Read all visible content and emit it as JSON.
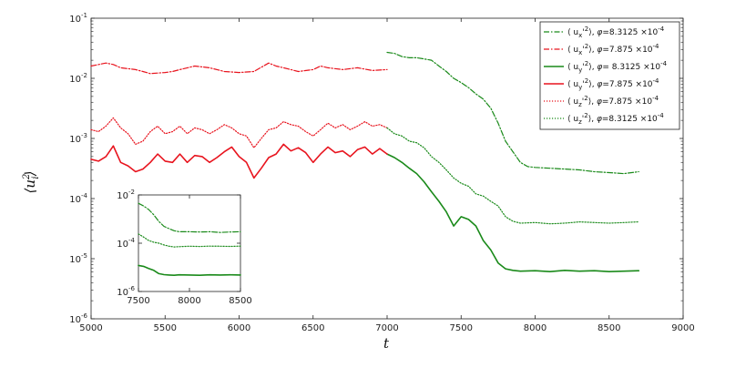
{
  "chart_data": [
    {
      "type": "line",
      "role": "main",
      "xlabel": "t",
      "ylabel": "⟨u_i'^2⟩",
      "xlim": [
        5000,
        9000
      ],
      "ylim": [
        1e-06,
        0.1
      ],
      "yscale": "log",
      "x_ticks": [
        5000,
        5500,
        6000,
        6500,
        7000,
        7500,
        8000,
        8500,
        9000
      ],
      "x_tick_labels": [
        "5000",
        "5500",
        "6000",
        "6500",
        "7000",
        "7500",
        "8000",
        "8500",
        "9000"
      ],
      "y_ticks": [
        1e-06,
        1e-05,
        0.0001,
        0.001,
        0.01,
        0.1
      ],
      "y_tick_labels": [
        {
          "base": "10",
          "exp": "-6"
        },
        {
          "base": "10",
          "exp": "-5"
        },
        {
          "base": "10",
          "exp": "-4"
        },
        {
          "base": "10",
          "exp": "-3"
        },
        {
          "base": "10",
          "exp": "-2"
        },
        {
          "base": "10",
          "exp": "-1"
        }
      ],
      "grid": false,
      "legend_position": "top-right",
      "series": [
        {
          "id": "ux_phi83125",
          "name": "⟨ u_x'^2⟩, φ=8.3125 ×10^-4",
          "color": "#1a8a1a",
          "dash": "dashdot",
          "x": [
            7000,
            7050,
            7100,
            7150,
            7200,
            7250,
            7300,
            7350,
            7400,
            7450,
            7500,
            7550,
            7600,
            7650,
            7700,
            7750,
            7800,
            7850,
            7900,
            7950,
            8000,
            8100,
            8200,
            8300,
            8400,
            8500,
            8600,
            8700
          ],
          "y": [
            0.027,
            0.026,
            0.023,
            0.022,
            0.022,
            0.021,
            0.02,
            0.016,
            0.013,
            0.01,
            0.0085,
            0.007,
            0.0055,
            0.0045,
            0.0032,
            0.0018,
            0.0009,
            0.0006,
            0.0004,
            0.00034,
            0.00033,
            0.00032,
            0.00031,
            0.0003,
            0.00028,
            0.00027,
            0.00026,
            0.00028
          ]
        },
        {
          "id": "ux_phi7875",
          "name": "⟨ u_x'^2⟩, φ=7.875 ×10^-4",
          "color": "#e8141e",
          "dash": "dashdot",
          "x": [
            5000,
            5100,
            5150,
            5200,
            5300,
            5350,
            5400,
            5500,
            5550,
            5600,
            5700,
            5800,
            5900,
            6000,
            6100,
            6200,
            6250,
            6300,
            6400,
            6500,
            6550,
            6600,
            6700,
            6800,
            6900,
            7000
          ],
          "y": [
            0.016,
            0.018,
            0.017,
            0.015,
            0.014,
            0.013,
            0.012,
            0.0125,
            0.013,
            0.014,
            0.016,
            0.015,
            0.013,
            0.0125,
            0.013,
            0.018,
            0.016,
            0.015,
            0.013,
            0.014,
            0.016,
            0.015,
            0.014,
            0.015,
            0.0135,
            0.014
          ]
        },
        {
          "id": "uy_phi83125",
          "name": "⟨ u_y'^2⟩, φ= 8.3125 ×10^-4",
          "color": "#1a8a1a",
          "dash": "solid",
          "x": [
            7000,
            7050,
            7100,
            7150,
            7200,
            7250,
            7300,
            7350,
            7400,
            7450,
            7500,
            7550,
            7600,
            7650,
            7700,
            7750,
            7800,
            7850,
            7900,
            8000,
            8100,
            8200,
            8300,
            8400,
            8500,
            8600,
            8700
          ],
          "y": [
            0.00055,
            0.00048,
            0.0004,
            0.00032,
            0.00026,
            0.00019,
            0.00013,
            9e-05,
            6e-05,
            3.5e-05,
            5e-05,
            4.5e-05,
            3.5e-05,
            2e-05,
            1.4e-05,
            8.5e-06,
            6.8e-06,
            6.4e-06,
            6.2e-06,
            6.3e-06,
            6.1e-06,
            6.4e-06,
            6.2e-06,
            6.3e-06,
            6.1e-06,
            6.2e-06,
            6.3e-06
          ]
        },
        {
          "id": "uy_phi7875",
          "name": "⟨ u_y'^2⟩, φ=7.875 ×10^-4",
          "color": "#e8141e",
          "dash": "solid",
          "x": [
            5000,
            5050,
            5100,
            5150,
            5200,
            5250,
            5300,
            5350,
            5400,
            5450,
            5500,
            5550,
            5600,
            5650,
            5700,
            5750,
            5800,
            5850,
            5900,
            5950,
            6000,
            6050,
            6100,
            6150,
            6200,
            6250,
            6300,
            6350,
            6400,
            6450,
            6500,
            6550,
            6600,
            6650,
            6700,
            6750,
            6800,
            6850,
            6900,
            6950,
            7000
          ],
          "y": [
            0.00045,
            0.00042,
            0.0005,
            0.00075,
            0.0004,
            0.00035,
            0.00028,
            0.00031,
            0.0004,
            0.00055,
            0.00042,
            0.0004,
            0.00055,
            0.0004,
            0.00052,
            0.0005,
            0.0004,
            0.00048,
            0.0006,
            0.00072,
            0.0005,
            0.0004,
            0.00022,
            0.00032,
            0.00048,
            0.00055,
            0.0008,
            0.00062,
            0.0007,
            0.00058,
            0.0004,
            0.00055,
            0.00072,
            0.00058,
            0.00062,
            0.0005,
            0.00065,
            0.00072,
            0.00055,
            0.00068,
            0.00055
          ]
        },
        {
          "id": "uz_phi7875",
          "name": "⟨ u_z'^2⟩, φ=7.875 ×10^-4",
          "color": "#e8141e",
          "dash": "dotted",
          "x": [
            5000,
            5050,
            5100,
            5150,
            5200,
            5250,
            5300,
            5350,
            5400,
            5450,
            5500,
            5550,
            5600,
            5650,
            5700,
            5750,
            5800,
            5850,
            5900,
            5950,
            6000,
            6050,
            6100,
            6150,
            6200,
            6250,
            6300,
            6350,
            6400,
            6450,
            6500,
            6550,
            6600,
            6650,
            6700,
            6750,
            6800,
            6850,
            6900,
            6950,
            7000
          ],
          "y": [
            0.0014,
            0.0013,
            0.0016,
            0.0022,
            0.0015,
            0.0012,
            0.0008,
            0.0009,
            0.0013,
            0.0016,
            0.0012,
            0.0013,
            0.0016,
            0.0012,
            0.0015,
            0.0014,
            0.0012,
            0.0014,
            0.0017,
            0.0015,
            0.0012,
            0.0011,
            0.0007,
            0.001,
            0.0014,
            0.0015,
            0.0019,
            0.0017,
            0.0016,
            0.0013,
            0.0011,
            0.0014,
            0.0018,
            0.0015,
            0.0017,
            0.0014,
            0.0016,
            0.0019,
            0.0016,
            0.0017,
            0.0015
          ]
        },
        {
          "id": "uz_phi83125",
          "name": "⟨ u_z'^2⟩, φ=8.3125 ×10^-4",
          "color": "#1a8a1a",
          "dash": "dotted",
          "x": [
            7000,
            7050,
            7100,
            7150,
            7200,
            7250,
            7300,
            7350,
            7400,
            7450,
            7500,
            7550,
            7600,
            7650,
            7700,
            7750,
            7800,
            7850,
            7900,
            8000,
            8100,
            8200,
            8300,
            8400,
            8500,
            8600,
            8700
          ],
          "y": [
            0.0015,
            0.0012,
            0.0011,
            0.0009,
            0.00085,
            0.0007,
            0.0005,
            0.0004,
            0.0003,
            0.00022,
            0.00018,
            0.00016,
            0.00012,
            0.00011,
            9e-05,
            7.5e-05,
            5e-05,
            4.2e-05,
            3.9e-05,
            4e-05,
            3.8e-05,
            3.9e-05,
            4.1e-05,
            4e-05,
            3.9e-05,
            4e-05,
            4.1e-05
          ]
        }
      ]
    },
    {
      "type": "line",
      "role": "inset",
      "xlim": [
        7500,
        8500
      ],
      "ylim": [
        1e-06,
        0.01
      ],
      "yscale": "log",
      "x_ticks": [
        7500,
        8000,
        8500
      ],
      "x_tick_labels": [
        "7500",
        "8000",
        "8500"
      ],
      "y_ticks": [
        1e-06,
        0.0001,
        0.01
      ],
      "y_tick_labels": [
        {
          "base": "10",
          "exp": "-6"
        },
        {
          "base": "10",
          "exp": "-4"
        },
        {
          "base": "10",
          "exp": "-2"
        }
      ],
      "series": [
        {
          "id": "inset_ux",
          "color": "#1a8a1a",
          "dash": "dashdot",
          "x": [
            7500,
            7550,
            7600,
            7650,
            7700,
            7750,
            7800,
            7850,
            7900,
            8000,
            8100,
            8200,
            8300,
            8400,
            8500
          ],
          "y": [
            0.0045,
            0.0035,
            0.0025,
            0.0015,
            0.0008,
            0.0005,
            0.0004,
            0.00033,
            0.0003,
            0.0003,
            0.00029,
            0.0003,
            0.00028,
            0.00029,
            0.0003
          ]
        },
        {
          "id": "inset_uz",
          "color": "#1a8a1a",
          "dash": "dotted",
          "x": [
            7500,
            7550,
            7600,
            7650,
            7700,
            7750,
            7800,
            7850,
            7900,
            8000,
            8100,
            8200,
            8300,
            8400,
            8500
          ],
          "y": [
            0.00024,
            0.00018,
            0.00013,
            0.00011,
            0.0001,
            8.5e-05,
            7.5e-05,
            7e-05,
            7.2e-05,
            7.5e-05,
            7.3e-05,
            7.6e-05,
            7.5e-05,
            7.4e-05,
            7.6e-05
          ]
        },
        {
          "id": "inset_uy",
          "color": "#1a8a1a",
          "dash": "solid",
          "x": [
            7500,
            7550,
            7600,
            7650,
            7700,
            7750,
            7800,
            7850,
            7900,
            8000,
            8100,
            8200,
            8300,
            8400,
            8500
          ],
          "y": [
            1.2e-05,
            1.1e-05,
            9e-06,
            7.5e-06,
            5.5e-06,
            5e-06,
            4.8e-06,
            4.7e-06,
            4.9e-06,
            4.8e-06,
            4.7e-06,
            4.9e-06,
            4.8e-06,
            4.9e-06,
            4.8e-06
          ]
        }
      ]
    }
  ],
  "legend": [
    {
      "series_id": "ux_phi83125",
      "parts": [
        {
          "t": "⟨ u"
        },
        {
          "t": "x",
          "sub": true
        },
        {
          "t": "'"
        },
        {
          "t": "2",
          "sup": true
        },
        {
          "t": "⟩, "
        },
        {
          "t": "φ",
          "it": true
        },
        {
          "t": "=8.3125  ×10"
        },
        {
          "t": "-4",
          "sup": true
        }
      ]
    },
    {
      "series_id": "ux_phi7875",
      "parts": [
        {
          "t": "⟨ u"
        },
        {
          "t": "x",
          "sub": true
        },
        {
          "t": "'"
        },
        {
          "t": "2",
          "sup": true
        },
        {
          "t": "⟩, "
        },
        {
          "t": "φ",
          "it": true
        },
        {
          "t": "=7.875  ×10"
        },
        {
          "t": "-4",
          "sup": true
        }
      ]
    },
    {
      "series_id": "uy_phi83125",
      "parts": [
        {
          "t": "⟨ u"
        },
        {
          "t": "y",
          "sub": true
        },
        {
          "t": "'"
        },
        {
          "t": "2",
          "sup": true
        },
        {
          "t": "⟩, "
        },
        {
          "t": "φ",
          "it": true
        },
        {
          "t": "= 8.3125  ×10"
        },
        {
          "t": "-4",
          "sup": true
        }
      ]
    },
    {
      "series_id": "uy_phi7875",
      "parts": [
        {
          "t": "⟨ u"
        },
        {
          "t": "y",
          "sub": true
        },
        {
          "t": "'"
        },
        {
          "t": "2",
          "sup": true
        },
        {
          "t": "⟩, "
        },
        {
          "t": "φ",
          "it": true
        },
        {
          "t": "=7.875  ×10"
        },
        {
          "t": "-4",
          "sup": true
        }
      ]
    },
    {
      "series_id": "uz_phi7875",
      "parts": [
        {
          "t": "⟨ u"
        },
        {
          "t": "z",
          "sub": true
        },
        {
          "t": "'"
        },
        {
          "t": "2",
          "sup": true
        },
        {
          "t": "⟩, "
        },
        {
          "t": "φ",
          "it": true
        },
        {
          "t": "=7.875  ×10"
        },
        {
          "t": "-4",
          "sup": true
        }
      ]
    },
    {
      "series_id": "uz_phi83125",
      "parts": [
        {
          "t": "⟨ u"
        },
        {
          "t": "z",
          "sub": true
        },
        {
          "t": "'"
        },
        {
          "t": "2",
          "sup": true
        },
        {
          "t": "⟩, "
        },
        {
          "t": "φ",
          "it": true
        },
        {
          "t": "=8.3125  ×10"
        },
        {
          "t": "-4",
          "sup": true
        }
      ]
    }
  ],
  "ylabel_parts": [
    {
      "t": "⟨"
    },
    {
      "t": "u",
      "it": true
    },
    {
      "t": "2",
      "sup": true,
      "sub_under": "i"
    },
    {
      "t": "⟩"
    }
  ]
}
